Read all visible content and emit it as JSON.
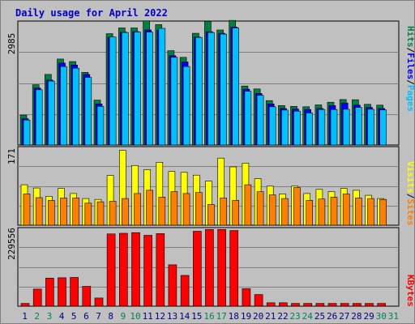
{
  "title": "Daily usage for April 2022",
  "chart_data": [
    {
      "type": "bar",
      "panel": "hits-files-pages",
      "ymax_label": "2985",
      "ylim": [
        0,
        2985
      ],
      "right_label": [
        "Pages",
        "/",
        "Files",
        "/",
        "Hits"
      ],
      "colors": {
        "hits": "#008040",
        "files": "#0000ff",
        "pages": "#00c0ff"
      },
      "days": [
        1,
        2,
        3,
        4,
        5,
        6,
        7,
        8,
        9,
        10,
        11,
        12,
        13,
        14,
        15,
        16,
        17,
        18,
        19,
        20,
        21,
        22,
        23,
        24,
        25,
        26,
        27,
        28,
        29,
        30,
        31
      ],
      "series": [
        {
          "name": "Hits",
          "values": [
            720,
            1450,
            1700,
            2070,
            2010,
            1750,
            1080,
            2680,
            2820,
            2820,
            2990,
            2900,
            2270,
            2110,
            2690,
            2980,
            2770,
            3000,
            1420,
            1350,
            1070,
            950,
            930,
            920,
            965,
            1030,
            1095,
            1090,
            980,
            960,
            0
          ]
        },
        {
          "name": "Files",
          "values": [
            635,
            1370,
            1565,
            1975,
            1925,
            1700,
            990,
            2590,
            2720,
            2730,
            2770,
            2765,
            2150,
            2000,
            2600,
            2730,
            2690,
            2840,
            1345,
            1240,
            990,
            880,
            865,
            855,
            880,
            950,
            1010,
            960,
            905,
            880,
            0
          ]
        },
        {
          "name": "Pages",
          "values": [
            600,
            1330,
            1540,
            1890,
            1850,
            1630,
            930,
            2600,
            2710,
            2720,
            2720,
            2810,
            2110,
            1890,
            2590,
            2710,
            2670,
            2820,
            1295,
            1195,
            920,
            840,
            815,
            770,
            855,
            855,
            860,
            905,
            860,
            845,
            0
          ]
        }
      ]
    },
    {
      "type": "bar",
      "panel": "visits-sites",
      "ymax_label": "171",
      "ylim": [
        0,
        171
      ],
      "right_label": [
        "Sites",
        "/",
        "Visits"
      ],
      "colors": {
        "visits": "#ffff00",
        "sites": "#ff8000"
      },
      "series": [
        {
          "name": "Visits",
          "values": [
            88,
            81,
            63,
            80,
            69,
            58,
            56,
            108,
            163,
            130,
            121,
            137,
            117,
            115,
            109,
            96,
            146,
            127,
            135,
            101,
            85,
            68,
            85,
            69,
            78,
            73,
            80,
            76,
            65,
            58,
            0
          ]
        },
        {
          "name": "Sites",
          "values": [
            68,
            60,
            54,
            59,
            59,
            48,
            51,
            52,
            58,
            69,
            76,
            61,
            73,
            69,
            71,
            45,
            59,
            54,
            88,
            73,
            66,
            58,
            82,
            54,
            57,
            61,
            68,
            59,
            58,
            56,
            0
          ]
        }
      ]
    },
    {
      "type": "bar",
      "panel": "kbytes",
      "ymax_label": "229556",
      "ylim": [
        0,
        229556
      ],
      "right_label": [
        "KBytes"
      ],
      "colors": {
        "kbytes": "#ff0000"
      },
      "series": [
        {
          "name": "KBytes",
          "values": [
            8000,
            50000,
            82000,
            83000,
            84000,
            58000,
            24000,
            211000,
            213000,
            215000,
            207000,
            212000,
            121000,
            90000,
            219000,
            224000,
            224000,
            221000,
            51000,
            34000,
            10000,
            10000,
            8000,
            8000,
            8000,
            8000,
            8000,
            8000,
            8000,
            8000,
            0
          ]
        }
      ]
    }
  ],
  "x_labels": {
    "values": [
      "1",
      "2",
      "3",
      "4",
      "5",
      "6",
      "7",
      "8",
      "9",
      "10",
      "11",
      "12",
      "13",
      "14",
      "15",
      "16",
      "17",
      "18",
      "19",
      "20",
      "21",
      "22",
      "23",
      "24",
      "25",
      "26",
      "27",
      "28",
      "29",
      "30",
      "31"
    ],
    "weekend_color": "#00805a",
    "weekday_color": "#000080",
    "weekend_days": [
      2,
      3,
      9,
      10,
      16,
      17,
      23,
      24,
      30,
      31
    ]
  }
}
